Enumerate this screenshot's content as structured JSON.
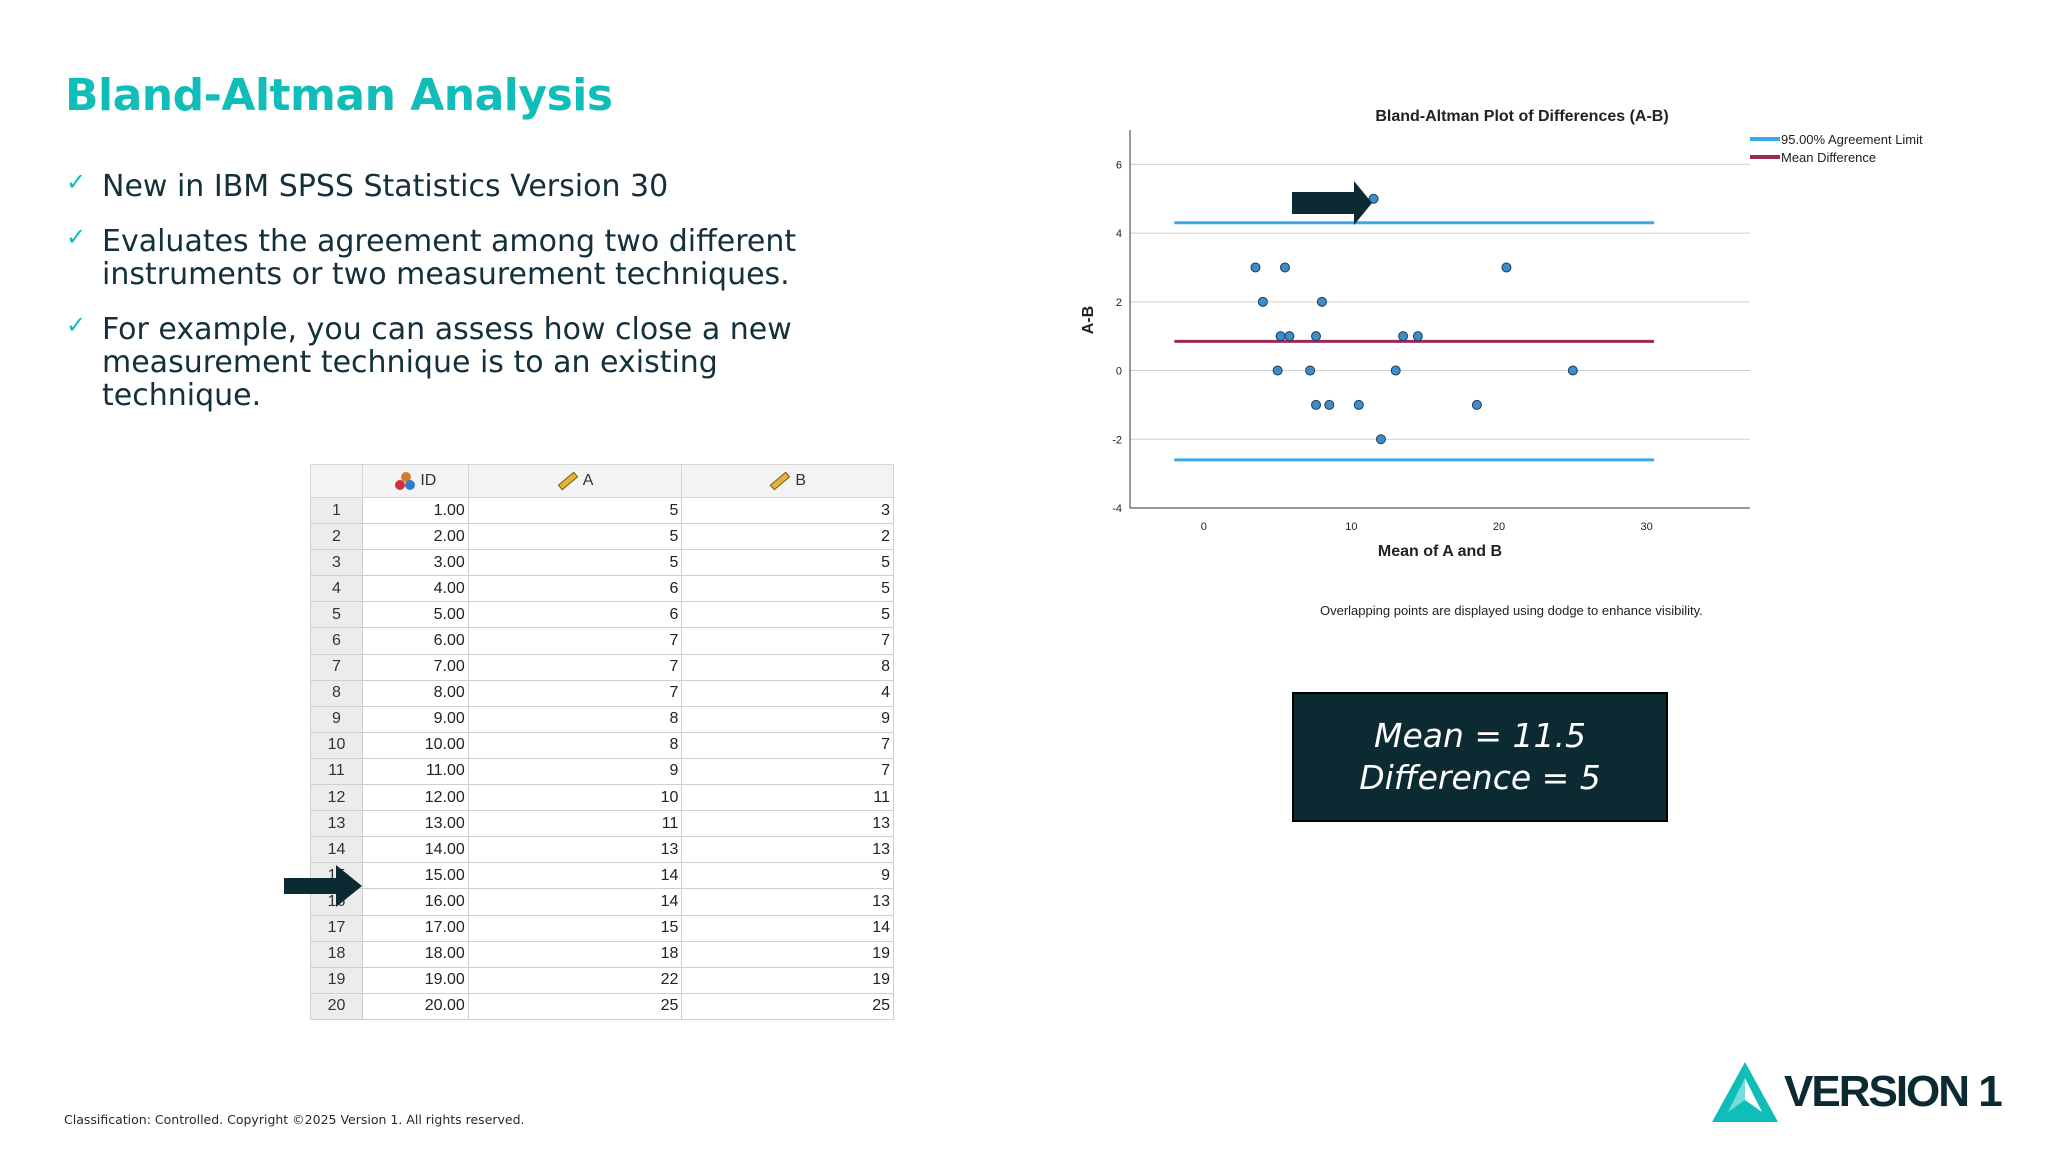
{
  "slide": {
    "title": "Bland-Altman Analysis",
    "bullets": [
      "New in IBM SPSS Statistics Version 30",
      "Evaluates the agreement among two different instruments or two measurement techniques.",
      "For example, you can assess how close a new measurement technique is to an existing technique."
    ],
    "footer": "Classification: Controlled. Copyright ©2025 Version 1. All rights reserved.",
    "logo_text": "VERSION 1"
  },
  "table": {
    "columns": [
      "ID",
      "A",
      "B"
    ],
    "rows": [
      [
        "1",
        "1.00",
        "5",
        "3"
      ],
      [
        "2",
        "2.00",
        "5",
        "2"
      ],
      [
        "3",
        "3.00",
        "5",
        "5"
      ],
      [
        "4",
        "4.00",
        "6",
        "5"
      ],
      [
        "5",
        "5.00",
        "6",
        "5"
      ],
      [
        "6",
        "6.00",
        "7",
        "7"
      ],
      [
        "7",
        "7.00",
        "7",
        "8"
      ],
      [
        "8",
        "8.00",
        "7",
        "4"
      ],
      [
        "9",
        "9.00",
        "8",
        "9"
      ],
      [
        "10",
        "10.00",
        "8",
        "7"
      ],
      [
        "11",
        "11.00",
        "9",
        "7"
      ],
      [
        "12",
        "12.00",
        "10",
        "11"
      ],
      [
        "13",
        "13.00",
        "11",
        "13"
      ],
      [
        "14",
        "14.00",
        "13",
        "13"
      ],
      [
        "15",
        "15.00",
        "14",
        "9"
      ],
      [
        "16",
        "16.00",
        "14",
        "13"
      ],
      [
        "17",
        "17.00",
        "15",
        "14"
      ],
      [
        "18",
        "18.00",
        "18",
        "19"
      ],
      [
        "19",
        "19.00",
        "22",
        "19"
      ],
      [
        "20",
        "20.00",
        "25",
        "25"
      ]
    ]
  },
  "callout": {
    "line1": "Mean = 11.5",
    "line2": "Difference = 5"
  },
  "chart_data": {
    "type": "scatter",
    "title": "Bland-Altman Plot of Differences (A-B)",
    "xlabel": "Mean of A and B",
    "ylabel": "A-B",
    "xlim": [
      -5,
      37
    ],
    "ylim": [
      -4,
      7
    ],
    "xticks": [
      0,
      10,
      20,
      30
    ],
    "yticks": [
      -4,
      -2,
      0,
      2,
      4,
      6
    ],
    "grid": "horizontal",
    "legend_position": "top-right",
    "footnote": "Overlapping points are displayed using dodge to enhance visibility.",
    "legend": [
      {
        "label": "95.00% Agreement Limit",
        "color": "#3aa8e8"
      },
      {
        "label": "Mean Difference",
        "color": "#9c2a55"
      }
    ],
    "mean_difference": 0.85,
    "upper_limit": 4.3,
    "lower_limit": -2.6,
    "limit_x_range": [
      -2,
      30.5
    ],
    "points": [
      [
        3.5,
        3
      ],
      [
        5.5,
        3
      ],
      [
        4,
        2
      ],
      [
        8,
        2
      ],
      [
        5.2,
        1
      ],
      [
        5.8,
        1
      ],
      [
        7.6,
        1
      ],
      [
        13.5,
        1
      ],
      [
        14.5,
        1
      ],
      [
        5,
        0
      ],
      [
        7.2,
        0
      ],
      [
        13,
        0
      ],
      [
        25,
        0
      ],
      [
        7.6,
        -1
      ],
      [
        8.5,
        -1
      ],
      [
        10.5,
        -1
      ],
      [
        18.5,
        -1
      ],
      [
        12,
        -2
      ],
      [
        11.5,
        5
      ],
      [
        20.5,
        3
      ]
    ],
    "point_color": "#3f8cc8"
  },
  "colors": {
    "accent": "#10bdb8",
    "dark": "#0c2a31"
  }
}
